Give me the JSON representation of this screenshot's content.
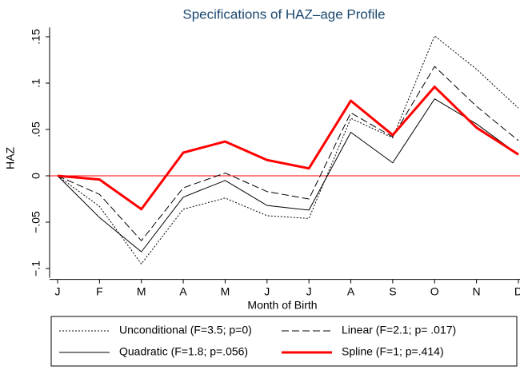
{
  "chart_data": {
    "type": "line",
    "title": "Specifications of HAZ–age Profile",
    "x_label": "Month of Birth",
    "y_label": "HAZ",
    "categories": [
      "J",
      "F",
      "M",
      "A",
      "M",
      "J",
      "J",
      "A",
      "S",
      "O",
      "N",
      "D"
    ],
    "ylim": [
      -0.11,
      0.16
    ],
    "yticks": [
      {
        "value": -0.1,
        "label": "−.1"
      },
      {
        "value": -0.05,
        "label": "−.05"
      },
      0,
      {
        "value": 0.05,
        "label": ".05"
      },
      {
        "value": 0.1,
        "label": ".1"
      },
      {
        "value": 0.15,
        "label": ".15"
      }
    ],
    "reference_line": {
      "value": 0,
      "color": "#ff0000"
    },
    "series": [
      {
        "name": "Unconditional (F=3.5; p=0)",
        "color": "#000000",
        "line_style": "dotted",
        "values": [
          0,
          -0.033,
          -0.095,
          -0.036,
          -0.024,
          -0.043,
          -0.046,
          0.062,
          0.041,
          0.151,
          0.115,
          0.073
        ]
      },
      {
        "name": "Linear (F=2.1; p= .017)",
        "color": "#000000",
        "line_style": "dashed",
        "values": [
          0,
          -0.02,
          -0.07,
          -0.013,
          0.003,
          -0.017,
          -0.025,
          0.068,
          0.042,
          0.118,
          0.075,
          0.038
        ]
      },
      {
        "name": "Quadratic (F=1.8; p=.056)",
        "color": "#000000",
        "line_style": "solid",
        "values": [
          0,
          -0.045,
          -0.082,
          -0.023,
          -0.005,
          -0.032,
          -0.037,
          0.047,
          0.014,
          0.083,
          0.056,
          0.023
        ]
      },
      {
        "name": "Spline (F=1; p=.414)",
        "color": "#ff0000",
        "line_style": "thick",
        "values": [
          0,
          -0.004,
          -0.036,
          0.025,
          0.037,
          0.017,
          0.008,
          0.081,
          0.044,
          0.096,
          0.052,
          0.023
        ]
      }
    ]
  }
}
